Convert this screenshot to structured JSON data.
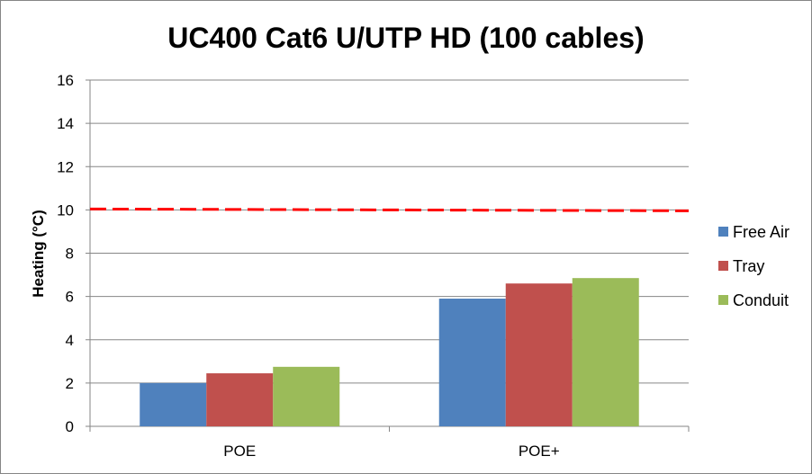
{
  "chart_data": {
    "type": "bar",
    "title": "UC400 Cat6 U/UTP HD (100 cables)",
    "xlabel": "",
    "ylabel": "Heating (°C)",
    "ylim": [
      0,
      16
    ],
    "yticks": [
      0,
      2,
      4,
      6,
      8,
      10,
      12,
      14,
      16
    ],
    "categories": [
      "POE",
      "POE+"
    ],
    "series": [
      {
        "name": "Free Air",
        "color": "#4F81BD",
        "values": [
          2.0,
          5.9
        ]
      },
      {
        "name": "Tray",
        "color": "#C0504D",
        "values": [
          2.45,
          6.6
        ]
      },
      {
        "name": "Conduit",
        "color": "#9BBB59",
        "values": [
          2.75,
          6.85
        ]
      }
    ],
    "reference_line": {
      "y": 10,
      "color": "#FF0000",
      "style": "dashed"
    },
    "grid": true,
    "legend_position": "right"
  }
}
